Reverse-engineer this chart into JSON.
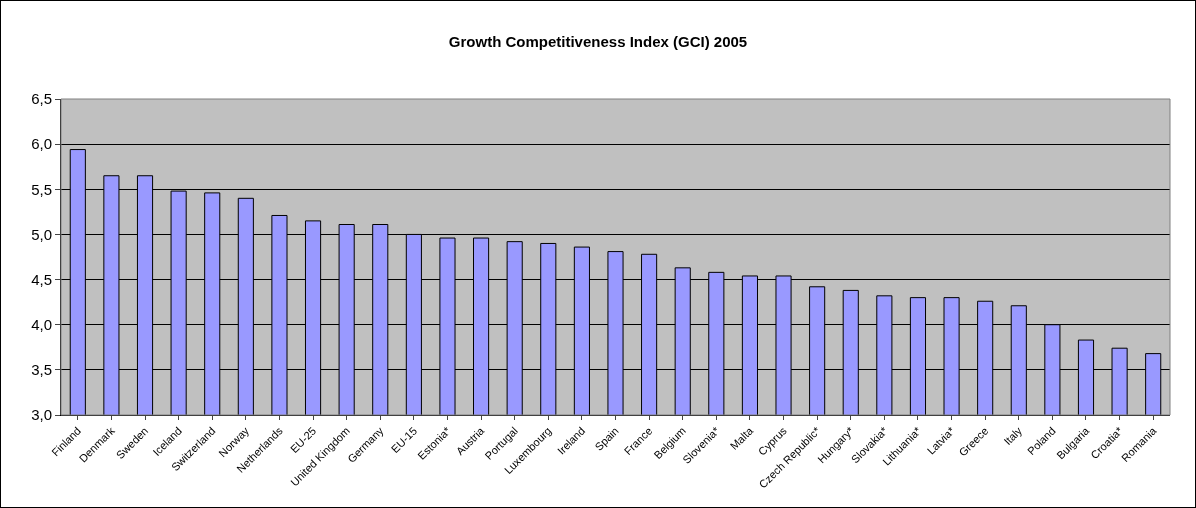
{
  "chart_data": {
    "type": "bar",
    "title": "Growth Competitiveness Index (GCI) 2005",
    "categories": [
      "Finland",
      "Denmark",
      "Sweden",
      "Iceland",
      "Switzerland",
      "Norway",
      "Netherlands",
      "EU-25",
      "United Kingdom",
      "Germany",
      "EU-15",
      "Estonia*",
      "Austria",
      "Portugal",
      "Luxembourg",
      "Ireland",
      "Spain",
      "France",
      "Belgium",
      "Slovenia*",
      "Malta",
      "Cyprus",
      "Czech Republic*",
      "Hungary*",
      "Slovakia*",
      "Lithuania*",
      "Latvia*",
      "Greece",
      "Italy",
      "Poland",
      "Bulgaria",
      "Croatia*",
      "Romania"
    ],
    "values": [
      5.94,
      5.65,
      5.65,
      5.48,
      5.46,
      5.4,
      5.21,
      5.15,
      5.11,
      5.11,
      5.0,
      4.96,
      4.96,
      4.92,
      4.9,
      4.86,
      4.81,
      4.78,
      4.63,
      4.58,
      4.54,
      4.54,
      4.42,
      4.38,
      4.32,
      4.3,
      4.3,
      4.26,
      4.21,
      4.0,
      3.83,
      3.74,
      3.68
    ],
    "color": "#9999ff",
    "ylim": [
      3.0,
      6.5
    ],
    "yticks": [
      {
        "value": 3.0,
        "label": "3,0"
      },
      {
        "value": 3.5,
        "label": "3,5"
      },
      {
        "value": 4.0,
        "label": "4,0"
      },
      {
        "value": 4.5,
        "label": "4,5"
      },
      {
        "value": 5.0,
        "label": "5,0"
      },
      {
        "value": 5.5,
        "label": "5,5"
      },
      {
        "value": 6.0,
        "label": "6,0"
      },
      {
        "value": 6.5,
        "label": "6,5"
      }
    ],
    "grid": "y",
    "legend": false
  }
}
